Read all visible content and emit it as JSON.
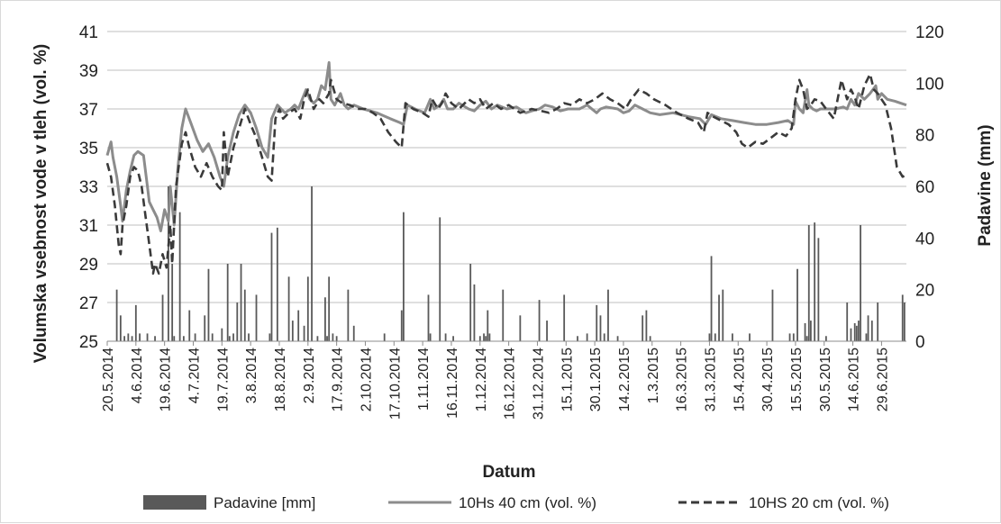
{
  "chart_data": {
    "type": "line",
    "xlabel": "Datum",
    "ylabel_left": "Volumska vsebnost vode v tleh (vol. %)",
    "ylabel_right": "Padavine (mm)",
    "ylim_left": [
      25,
      41
    ],
    "yticks_left": [
      25,
      27,
      29,
      31,
      33,
      35,
      37,
      39,
      41
    ],
    "ylim_right": [
      0,
      120
    ],
    "yticks_right": [
      0,
      20,
      40,
      60,
      80,
      100,
      120
    ],
    "x_start": "20.5.2014",
    "x_end": "12.7.2015",
    "x_ticks": [
      "20.5.2014",
      "4.6.2014",
      "19.6.2014",
      "4.7.2014",
      "19.7.2014",
      "3.8.2014",
      "18.8.2014",
      "2.9.2014",
      "17.9.2014",
      "2.10.2014",
      "17.10.2014",
      "1.11.2014",
      "16.11.2014",
      "1.12.2014",
      "16.12.2014",
      "31.12.2014",
      "15.1.2015",
      "30.1.2015",
      "14.2.2015",
      "1.3.2015",
      "16.3.2015",
      "31.3.2015",
      "15.4.2015",
      "30.4.2015",
      "15.5.2015",
      "30.5.2015",
      "14.6.2015",
      "29.6.2015"
    ],
    "grid": "horizontal",
    "legend_position": "bottom",
    "series": [
      {
        "name": "Padavine [mm]",
        "type": "bar",
        "axis": "right",
        "color": "#595959",
        "x": [
          "25.5.2014",
          "27.5.2014",
          "29.5.2014",
          "31.5.2014",
          "2.6.2014",
          "4.6.2014",
          "6.6.2014",
          "10.6.2014",
          "14.6.2014",
          "18.6.2014",
          "21.6.2014",
          "23.6.2014",
          "24.6.2014",
          "27.6.2014",
          "29.6.2014",
          "2.7.2014",
          "5.7.2014",
          "10.7.2014",
          "12.7.2014",
          "14.7.2014",
          "19.7.2014",
          "22.7.2014",
          "23.7.2014",
          "25.7.2014",
          "27.7.2014",
          "29.7.2014",
          "31.7.2014",
          "2.8.2014",
          "6.8.2014",
          "13.8.2014",
          "14.8.2014",
          "17.8.2014",
          "23.8.2014",
          "25.8.2014",
          "28.8.2014",
          "31.8.2014",
          "2.9.2014",
          "4.9.2014",
          "7.9.2014",
          "11.9.2014",
          "12.9.2014",
          "13.9.2014",
          "15.9.2014",
          "17.9.2014",
          "23.9.2014",
          "26.9.2014",
          "12.10.2014",
          "21.10.2014",
          "22.10.2014",
          "4.11.2014",
          "5.11.2014",
          "10.11.2014",
          "13.11.2014",
          "17.11.2014",
          "26.11.2014",
          "28.11.2014",
          "1.12.2014",
          "3.12.2014",
          "4.12.2014",
          "5.12.2014",
          "6.12.2014",
          "13.12.2014",
          "22.12.2014",
          "1.1.2015",
          "5.1.2015",
          "14.1.2015",
          "21.1.2015",
          "26.1.2015",
          "31.1.2015",
          "2.2.2015",
          "4.2.2015",
          "6.2.2015",
          "11.2.2015",
          "24.2.2015",
          "26.2.2015",
          "28.2.2015",
          "31.3.2015",
          "1.4.2015",
          "3.4.2015",
          "5.4.2015",
          "7.4.2015",
          "12.4.2015",
          "21.4.2015",
          "3.5.2015",
          "12.5.2015",
          "14.5.2015",
          "16.5.2015",
          "20.5.2015",
          "21.5.2015",
          "22.5.2015",
          "23.5.2015",
          "25.5.2015",
          "27.5.2015",
          "31.5.2015",
          "11.6.2015",
          "13.6.2015",
          "15.6.2015",
          "16.6.2015",
          "17.6.2015",
          "18.6.2015",
          "21.6.2015",
          "22.6.2015",
          "24.6.2015",
          "27.6.2015",
          "10.7.2015",
          "11.7.2015"
        ],
        "values": [
          20,
          10,
          2,
          3,
          2,
          14,
          3,
          3,
          2,
          18,
          60,
          30,
          2,
          50,
          2,
          12,
          3,
          10,
          28,
          3,
          5,
          30,
          2,
          3,
          15,
          30,
          20,
          3,
          18,
          3,
          42,
          44,
          25,
          8,
          12,
          6,
          25,
          60,
          2,
          17,
          2,
          25,
          3,
          2,
          20,
          6,
          3,
          12,
          50,
          18,
          3,
          48,
          3,
          2,
          30,
          22,
          2,
          3,
          2,
          12,
          3,
          20,
          10,
          16,
          8,
          18,
          2,
          3,
          14,
          10,
          3,
          20,
          2,
          10,
          12,
          2,
          3,
          33,
          3,
          18,
          20,
          3,
          3,
          20,
          3,
          3,
          28,
          7,
          2,
          45,
          8,
          46,
          40,
          2,
          15,
          5,
          7,
          6,
          8,
          45,
          3,
          10,
          8,
          15,
          18,
          15
        ]
      },
      {
        "name": "10Hs 40 cm (vol. %)",
        "type": "line",
        "axis": "left",
        "color": "#8c8c8c",
        "dash": "solid",
        "x": [
          "20.5.2014",
          "22.5.2014",
          "23.5.2014",
          "25.5.2014",
          "27.5.2014",
          "28.5.2014",
          "30.5.2014",
          "1.6.2014",
          "3.6.2014",
          "5.6.2014",
          "8.6.2014",
          "10.6.2014",
          "11.6.2014",
          "13.6.2014",
          "15.6.2014",
          "17.6.2014",
          "19.6.2014",
          "21.6.2014",
          "22.6.2014",
          "24.6.2014",
          "26.6.2014",
          "28.6.2014",
          "30.6.2014",
          "3.7.2014",
          "6.7.2014",
          "9.7.2014",
          "12.7.2014",
          "15.7.2014",
          "18.7.2014",
          "20.7.2014",
          "22.7.2014",
          "25.7.2014",
          "28.7.2014",
          "31.7.2014",
          "3.8.2014",
          "6.8.2014",
          "9.8.2014",
          "12.8.2014",
          "14.8.2014",
          "17.8.2014",
          "19.8.2014",
          "21.8.2014",
          "24.8.2014",
          "26.8.2014",
          "28.8.2014",
          "30.8.2014",
          "1.9.2014",
          "3.9.2014",
          "5.9.2014",
          "7.9.2014",
          "9.9.2014",
          "11.9.2014",
          "13.9.2014",
          "14.9.2014",
          "16.9.2014",
          "19.9.2014",
          "21.9.2014",
          "23.9.2014",
          "26.9.2014",
          "1.10.2014",
          "8.10.2014",
          "15.10.2014",
          "20.10.2014",
          "22.10.2014",
          "24.10.2014",
          "28.10.2014",
          "2.11.2014",
          "5.11.2014",
          "7.11.2014",
          "10.11.2014",
          "12.11.2014",
          "14.11.2014",
          "17.11.2014",
          "20.11.2014",
          "25.11.2014",
          "28.11.2014",
          "1.12.2014",
          "4.12.2014",
          "7.12.2014",
          "10.12.2014",
          "15.12.2014",
          "20.12.2014",
          "25.12.2014",
          "28.12.2014",
          "1.1.2015",
          "4.1.2015",
          "8.1.2015",
          "12.1.2015",
          "16.1.2015",
          "22.1.2015",
          "26.1.2015",
          "31.1.2015",
          "2.2.2015",
          "5.2.2015",
          "11.2.2015",
          "14.2.2015",
          "17.2.2015",
          "20.2.2015",
          "24.2.2015",
          "28.2.2015",
          "5.3.2015",
          "12.3.2015",
          "20.3.2015",
          "26.3.2015",
          "29.3.2015",
          "1.4.2015",
          "6.4.2015",
          "12.4.2015",
          "18.4.2015",
          "24.4.2015",
          "30.4.2015",
          "6.5.2015",
          "11.5.2015",
          "14.5.2015",
          "15.5.2015",
          "17.5.2015",
          "19.5.2015",
          "21.5.2015",
          "22.5.2015",
          "24.5.2015",
          "26.5.2015",
          "28.5.2015",
          "30.5.2015",
          "1.6.2015",
          "5.6.2015",
          "9.6.2015",
          "11.6.2015",
          "13.6.2015",
          "15.6.2015",
          "17.6.2015",
          "20.6.2015",
          "23.6.2015",
          "26.6.2015",
          "27.6.2015",
          "29.6.2015",
          "2.7.2015",
          "6.7.2015",
          "9.7.2015",
          "12.7.2015"
        ],
        "values": [
          34.6,
          35.3,
          34.5,
          33.5,
          32.0,
          31.2,
          32.8,
          33.8,
          34.6,
          34.8,
          34.6,
          33.0,
          32.2,
          31.8,
          31.4,
          30.7,
          31.8,
          31.2,
          33.0,
          31.0,
          34.0,
          36.0,
          37.0,
          36.2,
          35.4,
          34.8,
          35.2,
          34.5,
          33.5,
          33.0,
          34.5,
          35.8,
          36.7,
          37.2,
          36.8,
          36.0,
          35.0,
          34.5,
          36.5,
          37.2,
          37.0,
          36.8,
          37.0,
          37.2,
          37.0,
          37.5,
          38.0,
          37.5,
          37.3,
          37.5,
          38.2,
          38.0,
          39.4,
          37.5,
          37.2,
          37.8,
          37.2,
          37.0,
          37.2,
          37.0,
          36.8,
          36.5,
          36.3,
          36.2,
          37.2,
          37.0,
          36.8,
          37.5,
          37.0,
          37.2,
          37.5,
          37.0,
          37.0,
          37.3,
          37.0,
          36.9,
          37.2,
          37.4,
          37.0,
          37.2,
          37.0,
          37.1,
          36.8,
          36.9,
          37.0,
          37.2,
          37.1,
          36.9,
          37.0,
          37.0,
          37.2,
          36.8,
          37.0,
          37.1,
          37.0,
          36.8,
          36.9,
          37.2,
          37.0,
          36.8,
          36.7,
          36.8,
          36.6,
          36.5,
          36.2,
          36.7,
          36.5,
          36.4,
          36.3,
          36.2,
          36.2,
          36.3,
          36.4,
          36.2,
          37.4,
          37.0,
          36.8,
          38.0,
          37.2,
          37.0,
          36.9,
          37.0,
          37.0,
          37.0,
          37.0,
          37.1,
          37.0,
          37.5,
          37.2,
          37.8,
          37.5,
          37.8,
          38.2,
          37.5,
          37.8,
          37.5,
          37.4,
          37.3,
          37.2
        ]
      },
      {
        "name": "10HS 20 cm (vol. %)",
        "type": "line",
        "axis": "left",
        "color": "#3a3a3a",
        "dash": "dashed",
        "x": [
          "20.5.2014",
          "22.5.2014",
          "24.5.2014",
          "26.5.2014",
          "27.5.2014",
          "28.5.2014",
          "30.5.2014",
          "1.6.2014",
          "3.6.2014",
          "5.6.2014",
          "7.6.2014",
          "9.6.2014",
          "11.6.2014",
          "13.6.2014",
          "14.6.2014",
          "16.6.2014",
          "18.6.2014",
          "20.6.2014",
          "22.6.2014",
          "23.6.2014",
          "25.6.2014",
          "28.6.2014",
          "30.6.2014",
          "2.7.2014",
          "5.7.2014",
          "8.7.2014",
          "11.7.2014",
          "14.7.2014",
          "17.7.2014",
          "19.7.2014",
          "20.7.2014",
          "22.7.2014",
          "25.7.2014",
          "28.7.2014",
          "31.7.2014",
          "3.8.2014",
          "6.8.2014",
          "9.8.2014",
          "12.8.2014",
          "14.8.2014",
          "16.8.2014",
          "18.8.2014",
          "20.8.2014",
          "23.8.2014",
          "26.8.2014",
          "29.8.2014",
          "31.8.2014",
          "2.9.2014",
          "5.9.2014",
          "8.9.2014",
          "10.9.2014",
          "13.9.2014",
          "14.9.2014",
          "17.9.2014",
          "20.9.2014",
          "24.9.2014",
          "28.9.2014",
          "2.10.2014",
          "6.10.2014",
          "10.10.2014",
          "14.10.2014",
          "18.10.2014",
          "21.10.2014",
          "23.10.2014",
          "27.10.2014",
          "1.11.2014",
          "4.11.2014",
          "6.11.2014",
          "9.11.2014",
          "11.11.2014",
          "13.11.2014",
          "16.11.2014",
          "20.11.2014",
          "25.11.2014",
          "28.11.2014",
          "1.12.2014",
          "4.12.2014",
          "8.12.2014",
          "12.12.2014",
          "16.12.2014",
          "22.12.2014",
          "28.12.2014",
          "2.1.2015",
          "6.1.2015",
          "10.1.2015",
          "14.1.2015",
          "18.1.2015",
          "22.1.2015",
          "26.1.2015",
          "30.1.2015",
          "3.2.2015",
          "7.2.2015",
          "11.2.2015",
          "15.2.2015",
          "18.2.2015",
          "22.2.2015",
          "26.2.2015",
          "2.3.2015",
          "8.3.2015",
          "14.3.2015",
          "20.3.2015",
          "25.3.2015",
          "28.3.2015",
          "30.3.2015",
          "2.4.2015",
          "6.4.2015",
          "10.4.2015",
          "14.4.2015",
          "17.4.2015",
          "20.4.2015",
          "24.4.2015",
          "28.4.2015",
          "2.5.2015",
          "6.5.2015",
          "10.5.2015",
          "13.5.2015",
          "15.5.2015",
          "17.5.2015",
          "19.5.2015",
          "21.5.2015",
          "23.5.2015",
          "25.5.2015",
          "28.5.2015",
          "31.5.2015",
          "4.6.2015",
          "8.6.2015",
          "11.6.2015",
          "13.6.2015",
          "15.6.2015",
          "17.6.2015",
          "20.6.2015",
          "23.6.2015",
          "25.6.2015",
          "27.6.2015",
          "29.6.2015",
          "1.7.2015",
          "4.7.2015",
          "7.7.2015",
          "10.7.2015",
          "12.7.2015"
        ],
        "values": [
          34.2,
          33.5,
          32.0,
          30.0,
          29.5,
          31.0,
          32.0,
          33.5,
          34.0,
          33.8,
          33.0,
          31.5,
          30.0,
          28.5,
          29.0,
          28.5,
          29.5,
          28.8,
          31.0,
          29.0,
          33.0,
          35.2,
          35.8,
          35.0,
          34.0,
          33.5,
          34.2,
          33.5,
          33.0,
          32.8,
          35.8,
          33.5,
          35.0,
          36.0,
          37.0,
          36.2,
          35.5,
          34.5,
          33.5,
          33.3,
          36.5,
          37.0,
          36.5,
          36.8,
          37.0,
          36.5,
          37.5,
          38.0,
          37.0,
          37.5,
          37.3,
          37.8,
          38.5,
          37.5,
          37.3,
          37.2,
          37.0,
          37.0,
          36.8,
          36.5,
          35.8,
          35.3,
          35.0,
          37.3,
          37.0,
          36.8,
          36.6,
          37.5,
          37.0,
          37.3,
          37.8,
          37.3,
          37.0,
          37.5,
          37.3,
          37.5,
          37.0,
          37.3,
          37.0,
          37.2,
          36.8,
          37.0,
          36.9,
          36.8,
          37.0,
          37.3,
          37.2,
          37.5,
          37.3,
          37.5,
          37.8,
          37.5,
          37.3,
          37.0,
          37.5,
          38.0,
          37.8,
          37.5,
          37.2,
          36.8,
          36.5,
          36.3,
          35.8,
          36.8,
          36.6,
          36.4,
          36.2,
          35.8,
          35.2,
          35.0,
          35.3,
          35.2,
          35.5,
          35.8,
          35.6,
          36.0,
          37.5,
          38.5,
          38.0,
          37.0,
          37.2,
          37.5,
          37.4,
          37.0,
          36.5,
          38.5,
          37.5,
          38.0,
          37.6,
          37.0,
          38.2,
          38.8,
          38.0,
          37.8,
          37.5,
          37.2,
          36.0,
          34.0,
          33.5,
          33.6
        ]
      }
    ]
  }
}
